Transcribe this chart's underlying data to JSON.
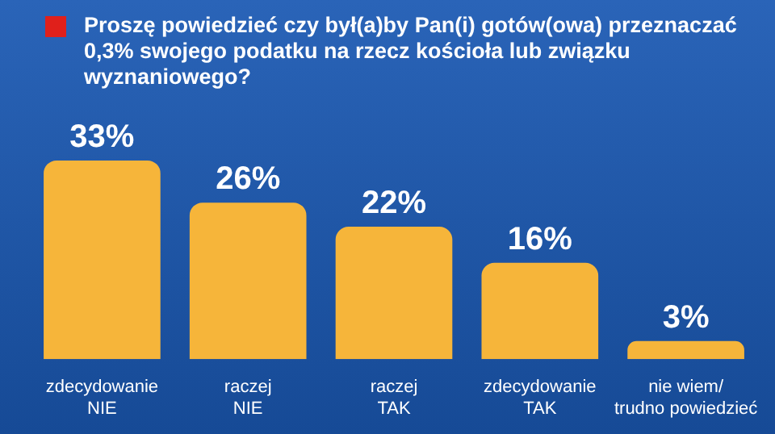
{
  "chart_data": {
    "type": "bar",
    "title": "Proszę powiedzieć czy był(a)by Pan(i) gotów(owa) przeznaczać 0,3% swojego podatku na rzecz kościoła lub związku wyznaniowego?",
    "categories": [
      "zdecydowanie\nNIE",
      "raczej\nNIE",
      "raczej\nTAK",
      "zdecydowanie\nTAK",
      "nie wiem/\ntrudno powiedzieć"
    ],
    "values": [
      33,
      26,
      22,
      16,
      3
    ],
    "color": "#f6b53a",
    "value_labels": [
      "33%",
      "26%",
      "22%",
      "16%",
      "3%"
    ],
    "grid": false,
    "legend": false
  }
}
